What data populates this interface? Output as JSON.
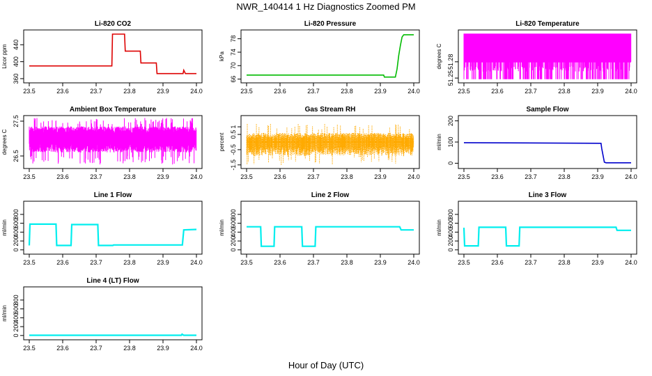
{
  "page": {
    "title": "NWR_140414  1 Hz Diagnostics Zoomed PM",
    "x_title": "Hour of Day (UTC)"
  },
  "chart_data": [
    {
      "type": "line",
      "title": "Li-820 CO2",
      "ylabel": "Licor ppm",
      "color": "#dd0000",
      "xlim": [
        23.5,
        24.0
      ],
      "ylim": [
        355,
        470
      ],
      "xticks": [
        23.5,
        23.6,
        23.7,
        23.8,
        23.9,
        24.0
      ],
      "yticks": [
        360,
        400,
        440
      ],
      "series": [
        {
          "x": [
            23.5,
            23.747,
            23.749,
            23.757,
            23.757,
            23.785,
            23.787,
            23.812,
            23.814,
            23.832,
            23.834,
            23.88,
            23.882,
            23.96,
            23.962,
            23.967,
            23.968,
            24.0
          ],
          "y": [
            390,
            390,
            465,
            465,
            465,
            465,
            425,
            425,
            425,
            425,
            397,
            397,
            372,
            372,
            380,
            372,
            372,
            372
          ]
        }
      ]
    },
    {
      "type": "line",
      "title": "Li-820 Pressure",
      "ylabel": "kPa",
      "color": "#00bb00",
      "xlim": [
        23.5,
        24.0
      ],
      "ylim": [
        65.5,
        80
      ],
      "xticks": [
        23.5,
        23.6,
        23.7,
        23.8,
        23.9,
        24.0
      ],
      "yticks": [
        66,
        70,
        74,
        78
      ],
      "series": [
        {
          "x": [
            23.5,
            23.91,
            23.912,
            23.945,
            23.95,
            23.955,
            23.96,
            23.965,
            23.97,
            23.975,
            24.0
          ],
          "y": [
            67.2,
            67.2,
            66.6,
            66.6,
            69,
            73,
            76,
            78.5,
            79.2,
            79.2,
            79.2
          ]
        }
      ]
    },
    {
      "type": "line",
      "title": "Li-820 Temperature",
      "ylabel": "degrees C",
      "color": "#ff00ff",
      "xlim": [
        23.5,
        24.0
      ],
      "ylim": [
        51.245,
        51.335
      ],
      "xticks": [
        23.5,
        23.6,
        23.7,
        23.8,
        23.9,
        24.0
      ],
      "yticks": [
        51.25,
        51.28
      ],
      "series": [
        {
          "x": [
            23.5,
            24.0
          ],
          "y": [
            51.28,
            51.28
          ]
        }
      ]
    },
    {
      "type": "line",
      "title": "Ambient Box Temperature",
      "ylabel": "degrees C",
      "color": "#ff00ff",
      "xlim": [
        23.5,
        24.0
      ],
      "ylim": [
        26.2,
        27.6
      ],
      "xticks": [
        23.5,
        23.6,
        23.7,
        23.8,
        23.9,
        24.0
      ],
      "yticks": [
        26.5,
        27.5
      ],
      "series": [
        {
          "x": [
            23.5,
            24.0
          ],
          "y": [
            27.0,
            27.0
          ]
        }
      ]
    },
    {
      "type": "line",
      "title": "Gas Stream RH",
      "ylabel": "percent",
      "color": "#ffaa00",
      "xlim": [
        23.5,
        24.0
      ],
      "ylim": [
        -1.6,
        1.6
      ],
      "xticks": [
        23.5,
        23.6,
        23.7,
        23.8,
        23.9,
        24.0
      ],
      "yticks": [
        -1.5,
        -0.5,
        0.5,
        1.0
      ],
      "series": [
        {
          "x": [
            23.5,
            24.0
          ],
          "y": [
            0.0,
            0.0
          ]
        }
      ]
    },
    {
      "type": "line",
      "title": "Sample Flow",
      "ylabel": "ml/min",
      "color": "#0000cc",
      "xlim": [
        23.5,
        24.0
      ],
      "ylim": [
        -15,
        215
      ],
      "xticks": [
        23.5,
        23.6,
        23.7,
        23.8,
        23.9,
        24.0
      ],
      "yticks": [
        0,
        100,
        200
      ],
      "series": [
        {
          "x": [
            23.5,
            23.91,
            23.912,
            23.92,
            23.925,
            24.0
          ],
          "y": [
            97,
            94,
            70,
            5,
            2,
            2
          ]
        }
      ]
    },
    {
      "type": "line",
      "title": "Line 1 Flow",
      "ylabel": "ml/min",
      "color": "#00eeee",
      "xlim": [
        23.5,
        24.0
      ],
      "ylim": [
        -50,
        1050
      ],
      "xticks": [
        23.5,
        23.6,
        23.7,
        23.8,
        23.9,
        24.0
      ],
      "yticks": [
        0,
        200,
        400,
        600,
        800
      ],
      "series": [
        {
          "x": [
            23.5,
            23.502,
            23.58,
            23.582,
            23.625,
            23.627,
            23.705,
            23.707,
            23.75,
            23.752,
            23.958,
            23.962,
            24.0
          ],
          "y": [
            100,
            580,
            580,
            100,
            100,
            570,
            570,
            100,
            100,
            110,
            110,
            450,
            460
          ]
        }
      ]
    },
    {
      "type": "line",
      "title": "Line 2 Flow",
      "ylabel": "ml/min",
      "color": "#00eeee",
      "xlim": [
        23.5,
        24.0
      ],
      "ylim": [
        -50,
        1050
      ],
      "xticks": [
        23.5,
        23.6,
        23.7,
        23.8,
        23.9,
        24.0
      ],
      "yticks": [
        0,
        200,
        400,
        600,
        800
      ],
      "series": [
        {
          "x": [
            23.5,
            23.542,
            23.544,
            23.582,
            23.584,
            23.665,
            23.667,
            23.705,
            23.707,
            23.958,
            23.962,
            24.0
          ],
          "y": [
            520,
            520,
            80,
            80,
            520,
            520,
            80,
            80,
            520,
            520,
            450,
            450
          ]
        }
      ]
    },
    {
      "type": "line",
      "title": "Line 3 Flow",
      "ylabel": "ml/min",
      "color": "#00eeee",
      "xlim": [
        23.5,
        24.0
      ],
      "ylim": [
        -50,
        1050
      ],
      "xticks": [
        23.5,
        23.6,
        23.7,
        23.8,
        23.9,
        24.0
      ],
      "yticks": [
        0,
        200,
        400,
        600,
        800
      ],
      "series": [
        {
          "x": [
            23.5,
            23.502,
            23.543,
            23.545,
            23.625,
            23.627,
            23.665,
            23.667,
            23.955,
            23.958,
            24.0
          ],
          "y": [
            500,
            90,
            90,
            510,
            510,
            90,
            90,
            510,
            510,
            440,
            440
          ]
        }
      ]
    },
    {
      "type": "line",
      "title": "Line 4 (LT) Flow",
      "ylabel": "ml/min",
      "color": "#00eeee",
      "xlim": [
        23.5,
        24.0
      ],
      "ylim": [
        -50,
        1050
      ],
      "xticks": [
        23.5,
        23.6,
        23.7,
        23.8,
        23.9,
        24.0
      ],
      "yticks": [
        0,
        200,
        400,
        600,
        800
      ],
      "series": [
        {
          "x": [
            23.5,
            23.955,
            23.957,
            23.96,
            23.962,
            24.0
          ],
          "y": [
            5,
            5,
            30,
            15,
            5,
            5
          ]
        }
      ]
    }
  ]
}
